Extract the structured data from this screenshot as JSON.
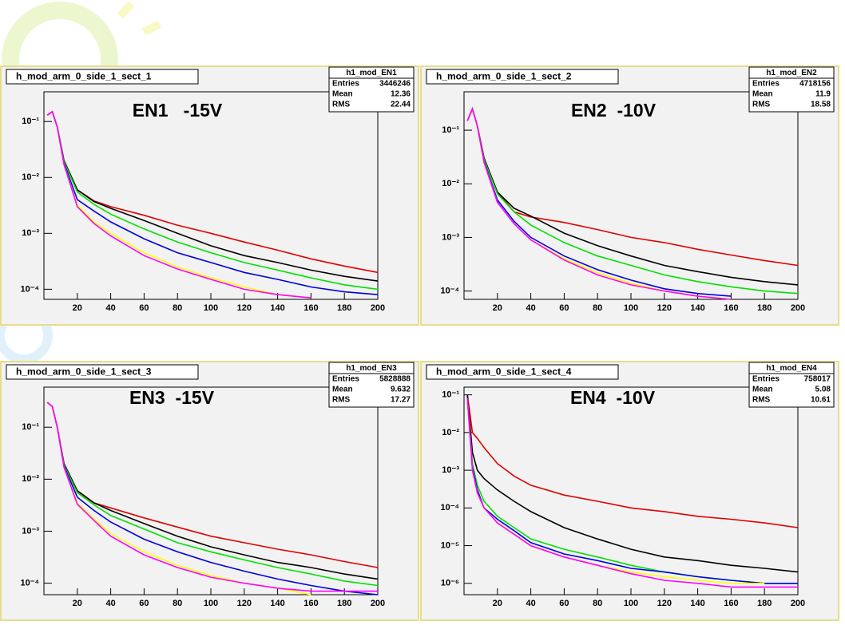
{
  "chart_data": [
    {
      "type": "line",
      "hist_title": "h_mod_arm_0_side_1_sect_1",
      "annotation": "EN1   -15V",
      "stats": {
        "name": "h1_mod_EN1",
        "rows": [
          {
            "label": "Entries",
            "value": 3446246
          },
          {
            "label": "Mean",
            "value": 12.36
          },
          {
            "label": "RMS",
            "value": 22.44
          }
        ]
      },
      "log_y": true,
      "xlim": [
        0,
        200
      ],
      "ylim": [
        6.6e-05,
        0.34
      ],
      "xticks": [
        20,
        40,
        60,
        80,
        100,
        120,
        140,
        160,
        180,
        200
      ],
      "yticks": [
        {
          "value": 0.1,
          "label": "10⁻¹"
        },
        {
          "value": 0.01,
          "label": "10⁻²"
        },
        {
          "value": 0.001,
          "label": "10⁻³"
        },
        {
          "value": 0.0001,
          "label": "10⁻⁴"
        }
      ],
      "x": [
        2,
        5,
        8,
        12,
        20,
        30,
        40,
        60,
        80,
        100,
        120,
        140,
        160,
        180,
        200
      ],
      "series": [
        {
          "color": "#e00000",
          "values": [
            0.13,
            0.15,
            0.08,
            0.02,
            0.006,
            0.0038,
            0.003,
            0.0021,
            0.0014,
            0.001,
            0.0007,
            0.0005,
            0.00035,
            0.00026,
            0.0002
          ]
        },
        {
          "color": "#000000",
          "values": [
            0.13,
            0.15,
            0.08,
            0.02,
            0.006,
            0.0037,
            0.0028,
            0.0017,
            0.001,
            0.0006,
            0.0004,
            0.0003,
            0.00022,
            0.00017,
            0.00014
          ]
        },
        {
          "color": "#00e000",
          "values": [
            0.13,
            0.15,
            0.08,
            0.019,
            0.0055,
            0.0033,
            0.0022,
            0.0012,
            0.0007,
            0.00045,
            0.0003,
            0.00022,
            0.00016,
            0.00012,
            0.0001
          ]
        },
        {
          "color": "#0000e0",
          "values": [
            0.13,
            0.15,
            0.08,
            0.018,
            0.004,
            0.0025,
            0.0016,
            0.0008,
            0.00045,
            0.0003,
            0.0002,
            0.00015,
            0.00011,
            9e-05,
            8e-05
          ]
        },
        {
          "color": "#ffff00",
          "values": [
            0.13,
            0.15,
            0.08,
            0.017,
            0.0032,
            0.0016,
            0.001,
            0.00045,
            0.00025,
            0.00016,
            0.00011,
            8e-05,
            7e-05,
            null,
            null
          ]
        },
        {
          "color": "#ff00ff",
          "values": [
            0.13,
            0.15,
            0.08,
            0.017,
            0.003,
            0.0015,
            0.0009,
            0.0004,
            0.00023,
            0.00015,
            0.0001,
            8e-05,
            7e-05,
            null,
            null
          ]
        }
      ]
    },
    {
      "type": "line",
      "hist_title": "h_mod_arm_0_side_1_sect_2",
      "annotation": "EN2  -10V",
      "stats": {
        "name": "h1_mod_EN2",
        "rows": [
          {
            "label": "Entries",
            "value": 4718156
          },
          {
            "label": "Mean",
            "value": 11.9
          },
          {
            "label": "RMS",
            "value": 18.58
          }
        ]
      },
      "log_y": true,
      "xlim": [
        0,
        200
      ],
      "ylim": [
        7e-05,
        0.52
      ],
      "xticks": [
        20,
        40,
        60,
        80,
        100,
        120,
        140,
        160,
        180,
        200
      ],
      "yticks": [
        {
          "value": 0.1,
          "label": "10⁻¹"
        },
        {
          "value": 0.01,
          "label": "10⁻²"
        },
        {
          "value": 0.001,
          "label": "10⁻³"
        },
        {
          "value": 0.0001,
          "label": "10⁻⁴"
        }
      ],
      "x": [
        2,
        5,
        8,
        12,
        20,
        30,
        40,
        60,
        80,
        100,
        120,
        140,
        160,
        180,
        200
      ],
      "series": [
        {
          "color": "#e00000",
          "values": [
            0.15,
            0.25,
            0.12,
            0.03,
            0.007,
            0.003,
            0.0024,
            0.0019,
            0.0014,
            0.001,
            0.0008,
            0.0006,
            0.00047,
            0.00037,
            0.0003
          ]
        },
        {
          "color": "#000000",
          "values": [
            0.15,
            0.25,
            0.12,
            0.03,
            0.007,
            0.0035,
            0.0025,
            0.0012,
            0.0007,
            0.00045,
            0.0003,
            0.00023,
            0.00018,
            0.00015,
            0.00013
          ]
        },
        {
          "color": "#00e000",
          "values": [
            0.15,
            0.25,
            0.12,
            0.028,
            0.0065,
            0.003,
            0.0017,
            0.0008,
            0.00045,
            0.0003,
            0.0002,
            0.00015,
            0.00012,
            0.0001,
            9e-05
          ]
        },
        {
          "color": "#0000e0",
          "values": [
            0.15,
            0.25,
            0.12,
            0.026,
            0.005,
            0.002,
            0.001,
            0.00045,
            0.00025,
            0.00016,
            0.00011,
            9e-05,
            8e-05,
            null,
            null
          ]
        },
        {
          "color": "#ffff00",
          "values": [
            0.15,
            0.25,
            0.12,
            0.025,
            0.0045,
            0.0018,
            0.0009,
            0.0004,
            0.00022,
            0.00014,
            0.0001,
            8e-05,
            7e-05,
            null,
            null
          ]
        },
        {
          "color": "#ff00ff",
          "values": [
            0.15,
            0.25,
            0.12,
            0.025,
            0.0045,
            0.0018,
            0.0009,
            0.00038,
            0.0002,
            0.00013,
            0.0001,
            8e-05,
            7e-05,
            null,
            null
          ]
        }
      ]
    },
    {
      "type": "line",
      "hist_title": "h_mod_arm_0_side_1_sect_3",
      "annotation": "EN3  -15V",
      "stats": {
        "name": "h1_mod_EN3",
        "rows": [
          {
            "label": "Entries",
            "value": 5828888
          },
          {
            "label": "Mean",
            "value": 9.632
          },
          {
            "label": "RMS",
            "value": 17.27
          }
        ]
      },
      "log_y": true,
      "xlim": [
        0,
        200
      ],
      "ylim": [
        6e-05,
        0.59
      ],
      "xticks": [
        20,
        40,
        60,
        80,
        100,
        120,
        140,
        160,
        180,
        200
      ],
      "yticks": [
        {
          "value": 0.1,
          "label": "10⁻¹"
        },
        {
          "value": 0.01,
          "label": "10⁻²"
        },
        {
          "value": 0.001,
          "label": "10⁻³"
        },
        {
          "value": 0.0001,
          "label": "10⁻⁴"
        }
      ],
      "x": [
        2,
        5,
        8,
        12,
        20,
        30,
        40,
        60,
        80,
        100,
        120,
        140,
        160,
        180,
        200
      ],
      "series": [
        {
          "color": "#e00000",
          "values": [
            0.3,
            0.25,
            0.1,
            0.02,
            0.006,
            0.0035,
            0.0028,
            0.0018,
            0.0012,
            0.0008,
            0.0006,
            0.00045,
            0.00035,
            0.00026,
            0.0002
          ]
        },
        {
          "color": "#000000",
          "values": [
            0.3,
            0.25,
            0.1,
            0.02,
            0.006,
            0.0035,
            0.0025,
            0.0014,
            0.0008,
            0.0005,
            0.00035,
            0.00025,
            0.0002,
            0.00015,
            0.00012
          ]
        },
        {
          "color": "#00e000",
          "values": [
            0.3,
            0.25,
            0.1,
            0.019,
            0.0055,
            0.0032,
            0.002,
            0.0011,
            0.0006,
            0.0004,
            0.00028,
            0.0002,
            0.00015,
            0.00011,
            9e-05
          ]
        },
        {
          "color": "#0000e0",
          "values": [
            0.3,
            0.25,
            0.1,
            0.018,
            0.0045,
            0.0025,
            0.0015,
            0.0007,
            0.0004,
            0.00025,
            0.00017,
            0.00012,
            9e-05,
            7e-05,
            6e-05
          ]
        },
        {
          "color": "#ffff00",
          "values": [
            0.3,
            0.25,
            0.1,
            0.017,
            0.0035,
            0.0017,
            0.0009,
            0.0004,
            0.00022,
            0.00014,
            0.0001,
            8e-05,
            6e-05,
            null,
            null
          ]
        },
        {
          "color": "#ff00ff",
          "values": [
            0.3,
            0.25,
            0.1,
            0.017,
            0.0033,
            0.0016,
            0.0008,
            0.00035,
            0.0002,
            0.00013,
            0.0001,
            8e-05,
            7e-05,
            7e-05,
            7e-05
          ]
        }
      ]
    },
    {
      "type": "line",
      "hist_title": "h_mod_arm_0_side_1_sect_4",
      "annotation": "EN4  -10V",
      "stats": {
        "name": "h1_mod_EN4",
        "rows": [
          {
            "label": "Entries",
            "value": 758017
          },
          {
            "label": "Mean",
            "value": 5.08
          },
          {
            "label": "RMS",
            "value": 10.61
          }
        ]
      },
      "log_y": true,
      "xlim": [
        0,
        200
      ],
      "ylim": [
        5e-07,
        0.16
      ],
      "xticks": [
        20,
        40,
        60,
        80,
        100,
        120,
        140,
        160,
        180,
        200
      ],
      "yticks": [
        {
          "value": 0.1,
          "label": "10⁻¹"
        },
        {
          "value": 0.01,
          "label": "10⁻²"
        },
        {
          "value": 0.001,
          "label": "10⁻³"
        },
        {
          "value": 0.0001,
          "label": "10⁻⁴"
        },
        {
          "value": 1e-05,
          "label": "10⁻⁵"
        },
        {
          "value": 1e-06,
          "label": "10⁻⁶"
        }
      ],
      "x": [
        2,
        5,
        8,
        12,
        20,
        30,
        40,
        60,
        80,
        100,
        120,
        140,
        160,
        180,
        200
      ],
      "series": [
        {
          "color": "#e00000",
          "values": [
            0.1,
            0.01,
            0.007,
            0.004,
            0.0015,
            0.0007,
            0.0004,
            0.00022,
            0.00015,
            0.0001,
            8e-05,
            6e-05,
            5e-05,
            4e-05,
            3e-05
          ]
        },
        {
          "color": "#000000",
          "values": [
            0.1,
            0.003,
            0.001,
            0.0006,
            0.0003,
            0.00015,
            8e-05,
            3e-05,
            1.5e-05,
            8e-06,
            5e-06,
            4e-06,
            3e-06,
            2.5e-06,
            2e-06
          ]
        },
        {
          "color": "#00e000",
          "values": [
            0.08,
            0.0015,
            0.0004,
            0.00015,
            6e-05,
            3e-05,
            1.5e-05,
            8e-06,
            5e-06,
            3e-06,
            2e-06,
            1.5e-06,
            1.2e-06,
            1e-06,
            1e-06
          ]
        },
        {
          "color": "#0000e0",
          "values": [
            0.08,
            0.0012,
            0.0003,
            0.0001,
            5e-05,
            2.5e-05,
            1.2e-05,
            6e-06,
            4e-06,
            2.5e-06,
            2e-06,
            1.5e-06,
            1.2e-06,
            1e-06,
            1e-06
          ]
        },
        {
          "color": "#ffff00",
          "values": [
            0.08,
            0.001,
            0.00025,
            0.0001,
            4e-05,
            2e-05,
            1e-05,
            5e-06,
            3e-06,
            2e-06,
            1.5e-06,
            1.2e-06,
            1e-06,
            1e-06,
            null
          ]
        },
        {
          "color": "#ff00ff",
          "values": [
            0.08,
            0.001,
            0.00025,
            0.0001,
            4e-05,
            2e-05,
            1e-05,
            5e-06,
            3e-06,
            1.8e-06,
            1.2e-06,
            1e-06,
            8e-07,
            8e-07,
            8e-07
          ]
        }
      ]
    }
  ]
}
